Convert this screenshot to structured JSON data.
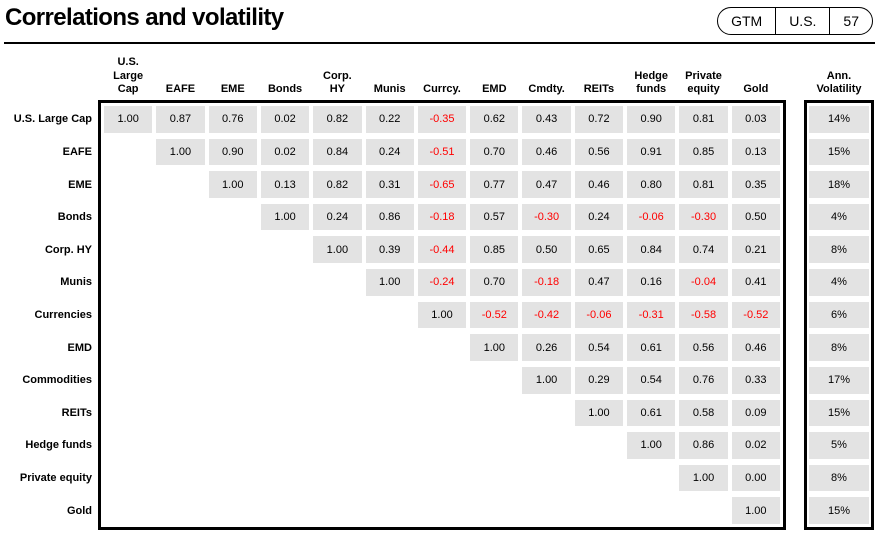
{
  "header": {
    "title": "Correlations and volatility",
    "badge": {
      "gtm": "GTM",
      "region": "U.S.",
      "page": "57"
    }
  },
  "colors": {
    "cell_bg": "#e3e3e3",
    "negative_text": "#ff0000",
    "border": "#000000"
  },
  "chart_data": {
    "type": "heatmap",
    "title": "Correlations and volatility",
    "row_labels": [
      "U.S. Large Cap",
      "EAFE",
      "EME",
      "Bonds",
      "Corp. HY",
      "Munis",
      "Currencies",
      "EMD",
      "Commodities",
      "REITs",
      "Hedge funds",
      "Private equity",
      "Gold"
    ],
    "column_labels": [
      "U.S.\nLarge\nCap",
      "EAFE",
      "EME",
      "Bonds",
      "Corp.\nHY",
      "Munis",
      "Currcy.",
      "EMD",
      "Cmdty.",
      "REITs",
      "Hedge\nfunds",
      "Private\nequity",
      "Gold"
    ],
    "volatility_label": "Ann.\nVolatility",
    "matrix": [
      [
        1.0,
        0.87,
        0.76,
        0.02,
        0.82,
        0.22,
        -0.35,
        0.62,
        0.43,
        0.72,
        0.9,
        0.81,
        0.03
      ],
      [
        null,
        1.0,
        0.9,
        0.02,
        0.84,
        0.24,
        -0.51,
        0.7,
        0.46,
        0.56,
        0.91,
        0.85,
        0.13
      ],
      [
        null,
        null,
        1.0,
        0.13,
        0.82,
        0.31,
        -0.65,
        0.77,
        0.47,
        0.46,
        0.8,
        0.81,
        0.35
      ],
      [
        null,
        null,
        null,
        1.0,
        0.24,
        0.86,
        -0.18,
        0.57,
        -0.3,
        0.24,
        -0.06,
        -0.3,
        0.5
      ],
      [
        null,
        null,
        null,
        null,
        1.0,
        0.39,
        -0.44,
        0.85,
        0.5,
        0.65,
        0.84,
        0.74,
        0.21
      ],
      [
        null,
        null,
        null,
        null,
        null,
        1.0,
        -0.24,
        0.7,
        -0.18,
        0.47,
        0.16,
        -0.04,
        0.41
      ],
      [
        null,
        null,
        null,
        null,
        null,
        null,
        1.0,
        -0.52,
        -0.42,
        -0.06,
        -0.31,
        -0.58,
        -0.52
      ],
      [
        null,
        null,
        null,
        null,
        null,
        null,
        null,
        1.0,
        0.26,
        0.54,
        0.61,
        0.56,
        0.46
      ],
      [
        null,
        null,
        null,
        null,
        null,
        null,
        null,
        null,
        1.0,
        0.29,
        0.54,
        0.76,
        0.33
      ],
      [
        null,
        null,
        null,
        null,
        null,
        null,
        null,
        null,
        null,
        1.0,
        0.61,
        0.58,
        0.09
      ],
      [
        null,
        null,
        null,
        null,
        null,
        null,
        null,
        null,
        null,
        null,
        1.0,
        0.86,
        0.02
      ],
      [
        null,
        null,
        null,
        null,
        null,
        null,
        null,
        null,
        null,
        null,
        null,
        1.0,
        0.0
      ],
      [
        null,
        null,
        null,
        null,
        null,
        null,
        null,
        null,
        null,
        null,
        null,
        null,
        1.0
      ]
    ],
    "volatility": [
      "14%",
      "15%",
      "18%",
      "4%",
      "8%",
      "4%",
      "6%",
      "8%",
      "17%",
      "15%",
      "5%",
      "8%",
      "15%"
    ]
  }
}
